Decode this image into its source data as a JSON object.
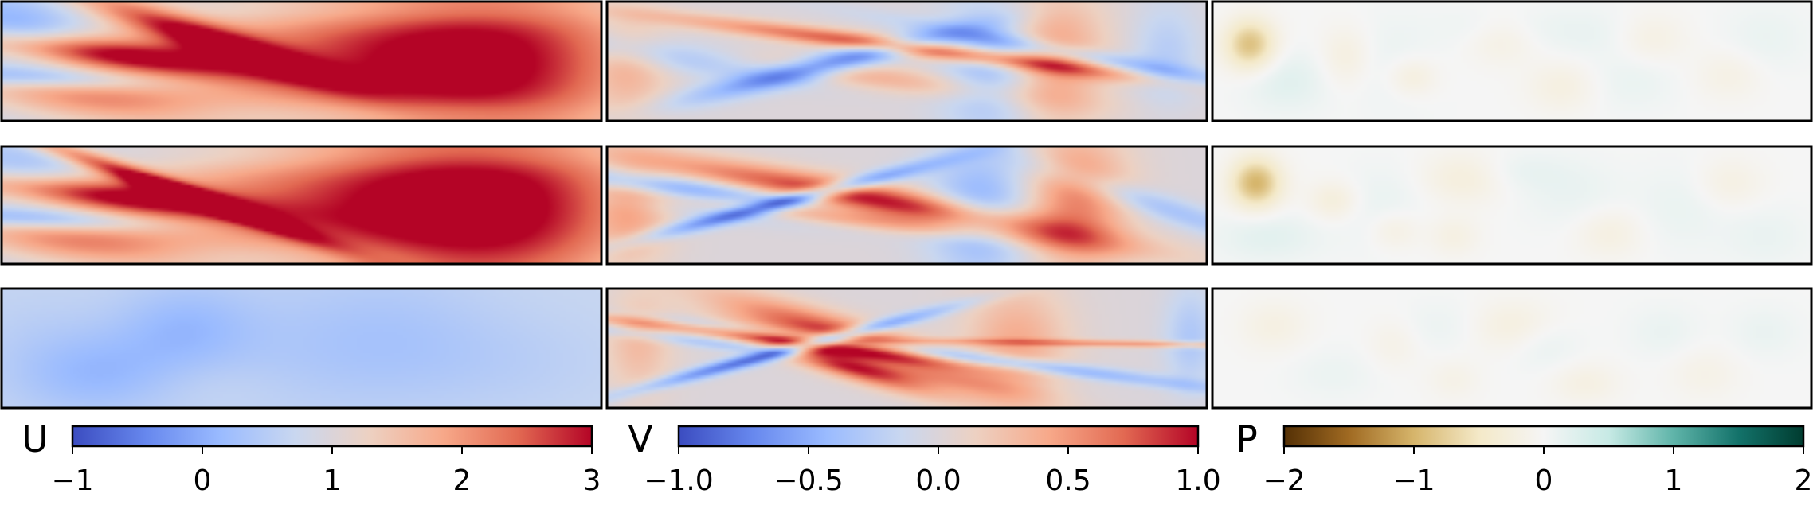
{
  "rows": [
    [
      {
        "field": "U",
        "blobs": [
          [
            0.03,
            0.25,
            3.0,
            -1.0,
            0.08,
            0.22
          ],
          [
            0.05,
            0.62,
            -1.3,
            -0.9,
            0.06,
            0.16
          ],
          [
            0.16,
            0.42,
            -1.0,
            1.9,
            0.08,
            0.2
          ],
          [
            0.14,
            0.8,
            -0.7,
            1.0,
            0.1,
            0.18
          ],
          [
            0.33,
            0.28,
            -0.5,
            1.8,
            0.05,
            0.3
          ],
          [
            0.55,
            0.5,
            0,
            1.5,
            0.3,
            0.6
          ],
          [
            0.82,
            0.5,
            0,
            1.6,
            0.18,
            0.6
          ],
          [
            0.45,
            0.05,
            0,
            -0.5,
            0.22,
            0.12
          ],
          [
            0.45,
            0.95,
            0,
            -0.5,
            0.22,
            0.12
          ],
          [
            0.78,
            0.06,
            0,
            -0.3,
            0.15,
            0.1
          ],
          [
            0.72,
            0.94,
            0,
            -0.4,
            0.15,
            0.1
          ]
        ]
      },
      {
        "field": "V",
        "blobs": [
          [
            0.03,
            0.55,
            0,
            0.35,
            0.05,
            0.3
          ],
          [
            0.13,
            0.45,
            -0.9,
            -0.85,
            0.07,
            0.22
          ],
          [
            0.26,
            0.52,
            -1.0,
            0.65,
            0.07,
            0.3
          ],
          [
            0.36,
            0.52,
            -2.5,
            -0.8,
            0.045,
            0.25
          ],
          [
            0.51,
            0.38,
            -1.0,
            0.85,
            0.045,
            0.32
          ],
          [
            0.64,
            0.55,
            0,
            -0.45,
            0.06,
            0.4
          ],
          [
            0.74,
            0.45,
            0,
            0.5,
            0.06,
            0.4
          ],
          [
            0.85,
            0.5,
            -0.8,
            -0.4,
            0.04,
            0.35
          ],
          [
            0.93,
            0.42,
            0,
            -0.25,
            0.04,
            0.3
          ]
        ]
      },
      {
        "field": "P",
        "blobs": [
          [
            0.06,
            0.35,
            0,
            -0.9,
            0.03,
            0.15
          ],
          [
            0.12,
            0.65,
            0,
            0.22,
            0.05,
            0.18
          ],
          [
            0.22,
            0.45,
            0,
            -0.25,
            0.03,
            0.18
          ],
          [
            0.3,
            0.52,
            0,
            0.12,
            0.05,
            0.3
          ],
          [
            0.33,
            0.62,
            0,
            -0.3,
            0.03,
            0.12
          ],
          [
            0.48,
            0.28,
            0,
            -0.25,
            0.04,
            0.15
          ],
          [
            0.47,
            0.2,
            0,
            0.15,
            0.06,
            0.12
          ],
          [
            0.58,
            0.7,
            0,
            -0.22,
            0.04,
            0.15
          ],
          [
            0.62,
            0.25,
            0,
            0.12,
            0.06,
            0.15
          ],
          [
            0.7,
            0.65,
            0,
            0.12,
            0.05,
            0.18
          ],
          [
            0.73,
            0.3,
            0,
            -0.2,
            0.04,
            0.15
          ],
          [
            0.86,
            0.6,
            0,
            -0.18,
            0.04,
            0.15
          ],
          [
            0.92,
            0.3,
            0,
            0.12,
            0.05,
            0.2
          ]
        ]
      }
    ],
    [
      {
        "field": "U",
        "blobs": [
          [
            0.04,
            0.25,
            3.0,
            -0.7,
            0.08,
            0.22
          ],
          [
            0.05,
            0.6,
            -1.3,
            -1.0,
            0.06,
            0.16
          ],
          [
            0.16,
            0.4,
            -1.0,
            1.9,
            0.08,
            0.2
          ],
          [
            0.12,
            0.8,
            -0.7,
            1.1,
            0.1,
            0.18
          ],
          [
            0.28,
            0.35,
            -0.5,
            2.0,
            0.03,
            0.35
          ],
          [
            0.55,
            0.5,
            0,
            1.6,
            0.3,
            0.6
          ],
          [
            0.82,
            0.5,
            0,
            1.7,
            0.18,
            0.6
          ],
          [
            0.4,
            0.06,
            0,
            -0.5,
            0.2,
            0.12
          ],
          [
            0.45,
            0.94,
            0,
            -0.6,
            0.22,
            0.12
          ],
          [
            0.8,
            0.06,
            0,
            -0.3,
            0.15,
            0.1
          ]
        ]
      },
      {
        "field": "V",
        "blobs": [
          [
            0.03,
            0.55,
            0,
            0.45,
            0.05,
            0.3
          ],
          [
            0.14,
            0.4,
            -0.9,
            -0.9,
            0.07,
            0.22
          ],
          [
            0.24,
            0.5,
            -1.0,
            0.75,
            0.05,
            0.28
          ],
          [
            0.3,
            0.45,
            -2.5,
            -0.9,
            0.03,
            0.28
          ],
          [
            0.45,
            0.45,
            -0.8,
            1.0,
            0.07,
            0.35
          ],
          [
            0.62,
            0.55,
            0,
            -0.5,
            0.06,
            0.4
          ],
          [
            0.78,
            0.45,
            0,
            0.6,
            0.06,
            0.4
          ],
          [
            0.92,
            0.5,
            -0.5,
            -0.35,
            0.04,
            0.3
          ]
        ]
      },
      {
        "field": "P",
        "blobs": [
          [
            0.07,
            0.3,
            0,
            -1.0,
            0.03,
            0.15
          ],
          [
            0.09,
            0.75,
            0,
            0.2,
            0.06,
            0.15
          ],
          [
            0.2,
            0.45,
            0,
            -0.3,
            0.03,
            0.12
          ],
          [
            0.28,
            0.52,
            0,
            0.14,
            0.05,
            0.25
          ],
          [
            0.3,
            0.7,
            0,
            -0.25,
            0.03,
            0.12
          ],
          [
            0.4,
            0.75,
            0,
            -0.2,
            0.03,
            0.12
          ],
          [
            0.42,
            0.25,
            0,
            -0.3,
            0.05,
            0.15
          ],
          [
            0.5,
            0.2,
            0,
            0.14,
            0.06,
            0.12
          ],
          [
            0.6,
            0.4,
            0,
            0.12,
            0.06,
            0.2
          ],
          [
            0.66,
            0.72,
            0,
            -0.22,
            0.04,
            0.15
          ],
          [
            0.78,
            0.5,
            0,
            0.12,
            0.05,
            0.25
          ],
          [
            0.86,
            0.3,
            0,
            -0.2,
            0.04,
            0.15
          ],
          [
            0.92,
            0.75,
            0,
            0.12,
            0.05,
            0.18
          ]
        ]
      }
    ],
    [
      {
        "field": "U",
        "blobs": [
          [
            0.15,
            0.7,
            0,
            -0.55,
            0.1,
            0.25
          ],
          [
            0.3,
            0.3,
            0,
            -0.45,
            0.08,
            0.25
          ],
          [
            0.45,
            0.5,
            0,
            -0.2,
            0.15,
            0.4
          ],
          [
            0.05,
            0.3,
            0,
            -0.1,
            0.08,
            0.25
          ],
          [
            0.65,
            0.4,
            0,
            -0.3,
            0.12,
            0.4
          ],
          [
            0.85,
            0.6,
            0,
            -0.15,
            0.12,
            0.3
          ],
          [
            0.35,
            0.8,
            0,
            0.1,
            0.08,
            0.15
          ]
        ]
      },
      {
        "field": "V",
        "blobs": [
          [
            0.05,
            0.45,
            0,
            0.3,
            0.04,
            0.3
          ],
          [
            0.18,
            0.35,
            -1.0,
            0.4,
            0.03,
            0.25
          ],
          [
            0.18,
            0.45,
            -1.0,
            -0.3,
            0.03,
            0.3
          ],
          [
            0.3,
            0.5,
            -2.5,
            -0.9,
            0.025,
            0.3
          ],
          [
            0.42,
            0.45,
            -0.5,
            1.0,
            0.06,
            0.3
          ],
          [
            0.38,
            0.6,
            -0.5,
            0.9,
            0.04,
            0.2
          ],
          [
            0.58,
            0.55,
            -1.0,
            -0.6,
            0.035,
            0.35
          ],
          [
            0.68,
            0.45,
            0,
            0.4,
            0.06,
            0.35
          ],
          [
            0.88,
            0.45,
            -1.5,
            0.5,
            0.02,
            0.3
          ],
          [
            0.97,
            0.4,
            0,
            -0.3,
            0.03,
            0.3
          ]
        ]
      },
      {
        "field": "P",
        "blobs": [
          [
            0.1,
            0.3,
            0,
            -0.2,
            0.04,
            0.15
          ],
          [
            0.2,
            0.7,
            0,
            0.1,
            0.05,
            0.15
          ],
          [
            0.3,
            0.45,
            0,
            -0.15,
            0.03,
            0.15
          ],
          [
            0.38,
            0.3,
            0,
            0.1,
            0.05,
            0.15
          ],
          [
            0.4,
            0.75,
            0,
            -0.15,
            0.03,
            0.12
          ],
          [
            0.5,
            0.3,
            0,
            -0.25,
            0.05,
            0.15
          ],
          [
            0.55,
            0.45,
            0,
            0.15,
            0.04,
            0.15
          ],
          [
            0.62,
            0.78,
            0,
            -0.2,
            0.04,
            0.12
          ],
          [
            0.75,
            0.35,
            0,
            0.12,
            0.04,
            0.15
          ],
          [
            0.82,
            0.7,
            0,
            -0.15,
            0.04,
            0.15
          ],
          [
            0.92,
            0.35,
            0,
            0.12,
            0.04,
            0.15
          ]
        ]
      }
    ]
  ],
  "fields": {
    "U": {
      "baseline": 0.7,
      "vmin": -1,
      "vmax": 3,
      "cmap": "coolwarm"
    },
    "V": {
      "baseline": 0.0,
      "vmin": -1.0,
      "vmax": 1.0,
      "cmap": "coolwarm"
    },
    "P": {
      "baseline": 0.0,
      "vmin": -2,
      "vmax": 2,
      "cmap": "BrBG"
    }
  },
  "colorbars": [
    {
      "letter": "U",
      "cmap": "coolwarm",
      "vmin": -1,
      "vmax": 3,
      "ticks": [
        -1,
        0,
        1,
        2,
        3
      ],
      "tick_labels": [
        "−1",
        "0",
        "1",
        "2",
        "3"
      ]
    },
    {
      "letter": "V",
      "cmap": "coolwarm",
      "vmin": -1.0,
      "vmax": 1.0,
      "ticks": [
        -1.0,
        -0.5,
        0.0,
        0.5,
        1.0
      ],
      "tick_labels": [
        "−1.0",
        "−0.5",
        "0.0",
        "0.5",
        "1.0"
      ]
    },
    {
      "letter": "P",
      "cmap": "BrBG",
      "vmin": -2,
      "vmax": 2,
      "ticks": [
        -2,
        -1,
        0,
        1,
        2
      ],
      "tick_labels": [
        "−2",
        "−1",
        "0",
        "1",
        "2"
      ]
    }
  ],
  "colormaps": {
    "coolwarm": [
      "#3b4cc0",
      "#6788ee",
      "#9abbff",
      "#c9d7f0",
      "#edd1c2",
      "#f7a889",
      "#e26952",
      "#b40426"
    ],
    "BrBG": [
      "#543005",
      "#a06a22",
      "#d6b56b",
      "#f4e9c8",
      "#f5f5f5",
      "#c7eae5",
      "#5fb4a9",
      "#13726a",
      "#003c30"
    ]
  }
}
